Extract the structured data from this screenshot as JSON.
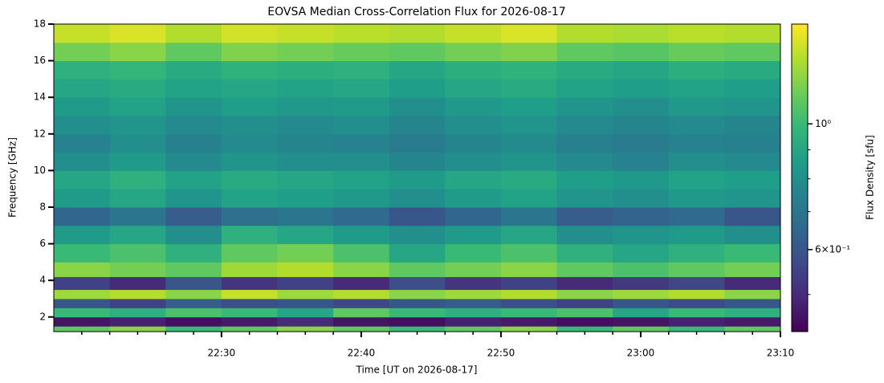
{
  "chart_data": {
    "type": "heatmap",
    "title": "EOVSA Median Cross-Correlation Flux for 2026-08-17",
    "xlabel": "Time [UT on 2026-08-17]",
    "ylabel": "Frequency [GHz]",
    "colorbar_label": "Flux Density [sfu]",
    "colormap": "viridis",
    "clog": true,
    "xlim": [
      "22:18",
      "23:10"
    ],
    "xticks": [
      "22:30",
      "22:40",
      "22:50",
      "23:00",
      "23:10"
    ],
    "xminorticks": [
      "22:20",
      "22:22",
      "22:24",
      "22:26",
      "22:28",
      "22:32",
      "22:34",
      "22:36",
      "22:38",
      "22:42",
      "22:44",
      "22:46",
      "22:48",
      "22:52",
      "22:54",
      "22:56",
      "22:58",
      "23:02",
      "23:04",
      "23:06",
      "23:08"
    ],
    "ylim": [
      1.2,
      18
    ],
    "yticks": [
      2,
      4,
      6,
      8,
      10,
      12,
      14,
      16,
      18
    ],
    "clim": [
      0.43,
      1.5
    ],
    "cticks": [
      {
        "value": 1,
        "label": "10⁰"
      },
      {
        "value": 0.6,
        "label": "6×10⁻¹"
      }
    ],
    "cminorticks": [
      0.5,
      0.7,
      0.8,
      0.9
    ],
    "x_edges": [
      "22:18",
      "22:22",
      "22:26",
      "22:30",
      "22:34",
      "22:38",
      "22:42",
      "22:46",
      "22:50",
      "22:54",
      "22:58",
      "23:02",
      "23:06",
      "23:10"
    ],
    "y_edges": [
      1.2,
      1.5,
      2.0,
      2.5,
      3.0,
      3.5,
      4.2,
      5,
      6,
      7,
      8,
      9,
      10,
      11,
      12,
      13,
      14,
      15,
      16,
      17,
      18
    ],
    "z": [
      [
        1.1,
        1.2,
        1.0,
        1.1,
        1.2,
        1.1,
        1.0,
        1.1,
        1.2,
        1.0,
        1.1,
        1.0,
        1.1
      ],
      [
        0.46,
        0.48,
        0.45,
        0.47,
        0.5,
        0.46,
        0.45,
        0.48,
        0.47,
        0.45,
        0.46,
        0.48,
        0.47
      ],
      [
        1.0,
        0.95,
        1.05,
        1.0,
        0.9,
        1.1,
        1.0,
        0.95,
        1.0,
        1.05,
        0.9,
        1.0,
        0.95
      ],
      [
        0.6,
        0.55,
        0.62,
        0.58,
        0.6,
        0.56,
        0.6,
        0.62,
        0.58,
        0.55,
        0.6,
        0.57,
        0.6
      ],
      [
        1.25,
        1.3,
        1.2,
        1.35,
        1.25,
        1.3,
        1.2,
        1.25,
        1.3,
        1.2,
        1.25,
        1.3,
        1.2
      ],
      [
        0.55,
        0.5,
        0.6,
        0.52,
        0.55,
        0.5,
        0.58,
        0.52,
        0.55,
        0.5,
        0.53,
        0.56,
        0.5
      ],
      [
        1.2,
        1.15,
        1.1,
        1.25,
        1.3,
        1.2,
        1.1,
        1.15,
        1.2,
        1.1,
        1.05,
        1.1,
        1.15
      ],
      [
        1.0,
        1.05,
        0.95,
        1.1,
        1.15,
        1.05,
        0.9,
        1.0,
        1.05,
        0.95,
        0.9,
        0.95,
        1.0
      ],
      [
        0.85,
        0.9,
        0.8,
        0.95,
        0.9,
        0.85,
        0.8,
        0.85,
        0.9,
        0.8,
        0.82,
        0.85,
        0.8
      ],
      [
        0.65,
        0.7,
        0.62,
        0.68,
        0.7,
        0.66,
        0.6,
        0.65,
        0.7,
        0.62,
        0.64,
        0.66,
        0.6
      ],
      [
        0.85,
        0.9,
        0.82,
        0.88,
        0.86,
        0.84,
        0.8,
        0.85,
        0.88,
        0.82,
        0.8,
        0.84,
        0.82
      ],
      [
        0.9,
        0.95,
        0.88,
        0.92,
        0.9,
        0.88,
        0.85,
        0.9,
        0.92,
        0.86,
        0.84,
        0.88,
        0.86
      ],
      [
        0.8,
        0.85,
        0.78,
        0.82,
        0.8,
        0.8,
        0.76,
        0.8,
        0.82,
        0.78,
        0.75,
        0.8,
        0.78
      ],
      [
        0.75,
        0.8,
        0.74,
        0.78,
        0.76,
        0.75,
        0.72,
        0.76,
        0.78,
        0.74,
        0.72,
        0.75,
        0.74
      ],
      [
        0.8,
        0.82,
        0.78,
        0.8,
        0.78,
        0.8,
        0.76,
        0.8,
        0.82,
        0.78,
        0.76,
        0.78,
        0.76
      ],
      [
        0.85,
        0.88,
        0.82,
        0.86,
        0.84,
        0.85,
        0.8,
        0.84,
        0.86,
        0.82,
        0.8,
        0.84,
        0.82
      ],
      [
        0.9,
        0.92,
        0.88,
        0.9,
        0.88,
        0.9,
        0.86,
        0.9,
        0.92,
        0.88,
        0.86,
        0.88,
        0.86
      ],
      [
        0.95,
        0.98,
        0.92,
        0.96,
        0.94,
        0.95,
        0.9,
        0.94,
        0.96,
        0.92,
        0.9,
        0.94,
        0.92
      ],
      [
        1.15,
        1.2,
        1.1,
        1.18,
        1.15,
        1.12,
        1.1,
        1.15,
        1.18,
        1.1,
        1.08,
        1.12,
        1.1
      ],
      [
        1.35,
        1.4,
        1.3,
        1.38,
        1.35,
        1.32,
        1.3,
        1.35,
        1.4,
        1.3,
        1.28,
        1.32,
        1.3
      ]
    ]
  }
}
